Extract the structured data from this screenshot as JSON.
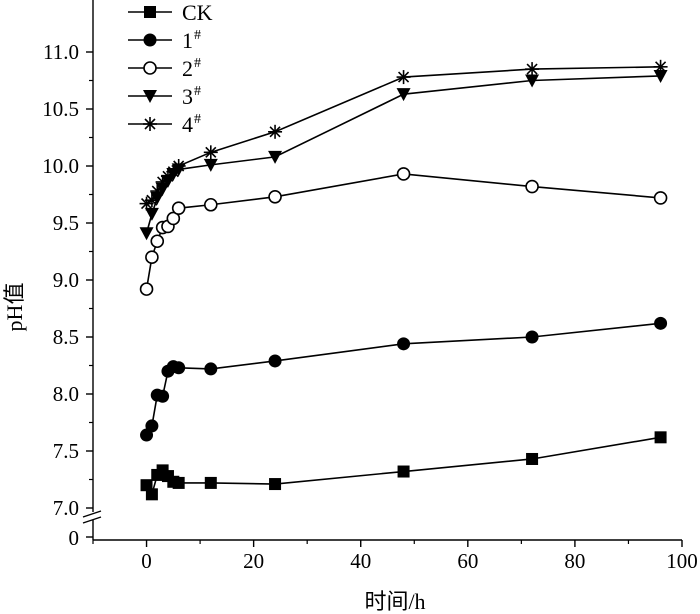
{
  "chart_data": {
    "type": "line",
    "xlabel": "时间/h",
    "ylabel": "pH值",
    "xlim": [
      -10,
      100
    ],
    "ylim": [
      7.0,
      11.3
    ],
    "axis_break": {
      "lower_value": 0,
      "upper_start": 7.0
    },
    "x_ticks": [
      0,
      20,
      40,
      60,
      80,
      100
    ],
    "x_tick_labels": [
      "0",
      "20",
      "40",
      "60",
      "80",
      "100"
    ],
    "y_ticks": [
      7.0,
      7.5,
      8.0,
      8.5,
      9.0,
      9.5,
      10.0,
      10.5,
      11.0
    ],
    "y_tick_labels": [
      "7.0",
      "7.5",
      "8.0",
      "8.5",
      "9.0",
      "9.5",
      "10.0",
      "10.5",
      "11.0"
    ],
    "y_break_label": "0",
    "legend_position": "top-left",
    "series": [
      {
        "name": "CK",
        "sup": "",
        "marker": "square",
        "x": [
          0,
          1,
          2,
          3,
          4,
          5,
          6,
          12,
          24,
          48,
          72,
          96
        ],
        "values": [
          7.2,
          7.12,
          7.29,
          7.33,
          7.28,
          7.23,
          7.22,
          7.22,
          7.21,
          7.32,
          7.43,
          7.62
        ]
      },
      {
        "name": "1",
        "sup": "#",
        "marker": "circle-filled",
        "x": [
          0,
          1,
          2,
          3,
          4,
          5,
          6,
          12,
          24,
          48,
          72,
          96
        ],
        "values": [
          7.64,
          7.72,
          7.99,
          7.98,
          8.2,
          8.24,
          8.23,
          8.22,
          8.29,
          8.44,
          8.5,
          8.62
        ]
      },
      {
        "name": "2",
        "sup": "#",
        "marker": "circle-open",
        "x": [
          0,
          1,
          2,
          3,
          4,
          5,
          6,
          12,
          24,
          48,
          72,
          96
        ],
        "values": [
          8.92,
          9.2,
          9.34,
          9.46,
          9.47,
          9.54,
          9.63,
          9.66,
          9.73,
          9.93,
          9.82,
          9.72
        ]
      },
      {
        "name": "3",
        "sup": "#",
        "marker": "triangle-down",
        "x": [
          0,
          1,
          2,
          3,
          4,
          5,
          6,
          12,
          24,
          48,
          72,
          96
        ],
        "values": [
          9.41,
          9.58,
          9.72,
          9.8,
          9.87,
          9.93,
          9.97,
          10.01,
          10.08,
          10.63,
          10.75,
          10.79
        ]
      },
      {
        "name": "4",
        "sup": "#",
        "marker": "asterisk",
        "x": [
          0,
          1,
          2,
          3,
          4,
          5,
          6,
          12,
          24,
          48,
          72,
          96
        ],
        "values": [
          9.67,
          9.7,
          9.78,
          9.86,
          9.91,
          9.95,
          10.0,
          10.12,
          10.3,
          10.78,
          10.85,
          10.87
        ]
      }
    ]
  }
}
